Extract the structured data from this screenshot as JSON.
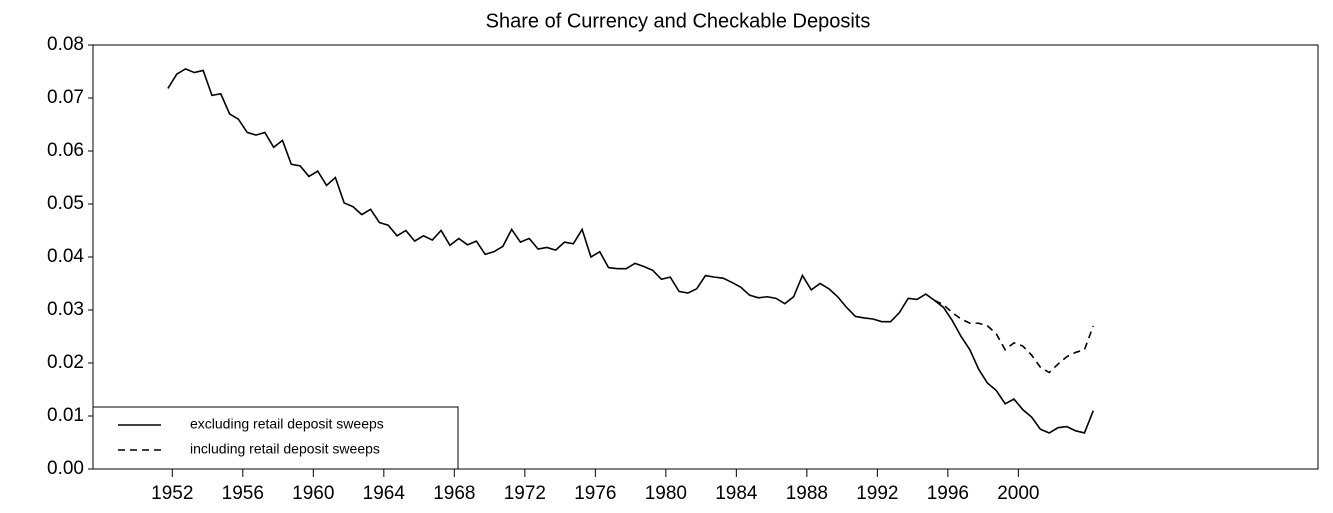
{
  "chart_data": {
    "type": "line",
    "title": "Share of Currency and Checkable Deposits",
    "x": [
      1951.75,
      1952.25,
      1952.75,
      1953.25,
      1953.75,
      1954.25,
      1954.75,
      1955.25,
      1955.75,
      1956.25,
      1956.75,
      1957.25,
      1957.75,
      1958.25,
      1958.75,
      1959.25,
      1959.75,
      1960.25,
      1960.75,
      1961.25,
      1961.75,
      1962.25,
      1962.75,
      1963.25,
      1963.75,
      1964.25,
      1964.75,
      1965.25,
      1965.75,
      1966.25,
      1966.75,
      1967.25,
      1967.75,
      1968.25,
      1968.75,
      1969.25,
      1969.75,
      1970.25,
      1970.75,
      1971.25,
      1971.75,
      1972.25,
      1972.75,
      1973.25,
      1973.75,
      1974.25,
      1974.75,
      1975.25,
      1975.75,
      1976.25,
      1976.75,
      1977.25,
      1977.75,
      1978.25,
      1978.75,
      1979.25,
      1979.75,
      1980.25,
      1980.75,
      1981.25,
      1981.75,
      1982.25,
      1982.75,
      1983.25,
      1983.75,
      1984.25,
      1984.75,
      1985.25,
      1985.75,
      1986.25,
      1986.75,
      1987.25,
      1987.75,
      1988.25,
      1988.75,
      1989.25,
      1989.75,
      1990.25,
      1990.75,
      1991.25,
      1991.75,
      1992.25,
      1992.75,
      1993.25,
      1993.75,
      1994.25,
      1994.75,
      1995.25,
      1995.75,
      1996.25,
      1996.75,
      1997.25,
      1997.75,
      1998.25,
      1998.75,
      1999.25,
      1999.75,
      2000.25,
      2000.75,
      2001.25,
      2001.75,
      2002.25,
      2002.75,
      2003.25,
      2003.75,
      2004.25
    ],
    "series": [
      {
        "name": "excluding retail deposit sweeps",
        "color": "#000000",
        "dash": false,
        "values": [
          0.0718,
          0.0745,
          0.0755,
          0.0748,
          0.0752,
          0.0705,
          0.0708,
          0.067,
          0.066,
          0.0635,
          0.063,
          0.0635,
          0.0607,
          0.062,
          0.0575,
          0.0572,
          0.0552,
          0.0562,
          0.0535,
          0.055,
          0.0502,
          0.0495,
          0.048,
          0.049,
          0.0465,
          0.046,
          0.044,
          0.045,
          0.043,
          0.044,
          0.0432,
          0.045,
          0.0422,
          0.0435,
          0.0423,
          0.043,
          0.0405,
          0.041,
          0.042,
          0.0452,
          0.0428,
          0.0435,
          0.0415,
          0.0418,
          0.0413,
          0.0428,
          0.0425,
          0.0452,
          0.04,
          0.041,
          0.038,
          0.0378,
          0.0378,
          0.0388,
          0.0382,
          0.0375,
          0.0358,
          0.0362,
          0.0335,
          0.0332,
          0.034,
          0.0365,
          0.0362,
          0.036,
          0.0352,
          0.0343,
          0.0328,
          0.0323,
          0.0325,
          0.0322,
          0.0312,
          0.0325,
          0.0365,
          0.0338,
          0.035,
          0.034,
          0.0325,
          0.0305,
          0.0288,
          0.0285,
          0.0283,
          0.0278,
          0.0278,
          0.0295,
          0.0322,
          0.032,
          0.033,
          0.0318,
          0.0305,
          0.028,
          0.025,
          0.0225,
          0.0188,
          0.0162,
          0.0148,
          0.0123,
          0.0132,
          0.0112,
          0.0098,
          0.0075,
          0.0068,
          0.0078,
          0.008,
          0.0072,
          0.0068,
          0.011
        ]
      },
      {
        "name": "including retail deposit sweeps",
        "color": "#000000",
        "dash": true,
        "values": [
          null,
          null,
          null,
          null,
          null,
          null,
          null,
          null,
          null,
          null,
          null,
          null,
          null,
          null,
          null,
          null,
          null,
          null,
          null,
          null,
          null,
          null,
          null,
          null,
          null,
          null,
          null,
          null,
          null,
          null,
          null,
          null,
          null,
          null,
          null,
          null,
          null,
          null,
          null,
          null,
          null,
          null,
          null,
          null,
          null,
          null,
          null,
          null,
          null,
          null,
          null,
          null,
          null,
          null,
          null,
          null,
          null,
          null,
          null,
          null,
          null,
          null,
          null,
          null,
          null,
          null,
          null,
          null,
          null,
          null,
          null,
          null,
          null,
          null,
          null,
          null,
          null,
          null,
          null,
          null,
          null,
          null,
          null,
          null,
          null,
          null,
          null,
          0.0318,
          0.031,
          0.0295,
          0.0283,
          0.0275,
          0.0275,
          0.027,
          0.0255,
          0.0225,
          0.0238,
          0.0232,
          0.0215,
          0.0192,
          0.0182,
          0.0198,
          0.0212,
          0.022,
          0.0225,
          0.027
        ]
      }
    ],
    "xlim": [
      1947.5,
      2017
    ],
    "xticks": [
      1952,
      1956,
      1960,
      1964,
      1968,
      1972,
      1976,
      1980,
      1984,
      1988,
      1992,
      1996,
      2000
    ],
    "ylim": [
      0,
      0.08
    ],
    "yticks": [
      {
        "value": 0,
        "label": "0.00"
      },
      {
        "value": 0.01,
        "label": "0.01"
      },
      {
        "value": 0.02,
        "label": "0.02"
      },
      {
        "value": 0.03,
        "label": "0.03"
      },
      {
        "value": 0.04,
        "label": "0.04"
      },
      {
        "value": 0.05,
        "label": "0.05"
      },
      {
        "value": 0.06,
        "label": "0.06"
      },
      {
        "value": 0.07,
        "label": "0.07"
      },
      {
        "value": 0.08,
        "label": "0.08"
      }
    ],
    "grid": false,
    "legend": "lower left"
  }
}
